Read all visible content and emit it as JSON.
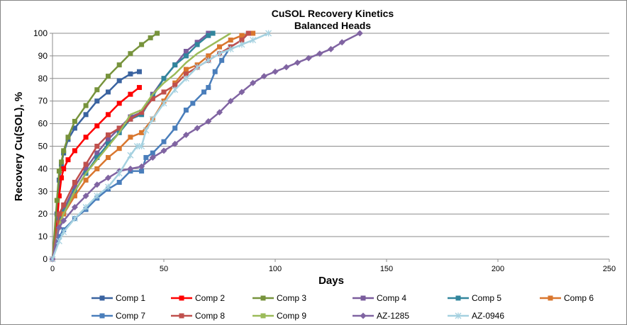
{
  "chart_data": {
    "type": "line",
    "title": "CuSOL Recovery Kinetics",
    "subtitle": "Balanced Heads",
    "xlabel": "Days",
    "ylabel": "Recovery Cu(SOL), %",
    "xlim": [
      0,
      250
    ],
    "ylim": [
      0,
      100
    ],
    "xticks": [
      0,
      50,
      100,
      150,
      200,
      250
    ],
    "yticks": [
      0,
      10,
      20,
      30,
      40,
      50,
      60,
      70,
      80,
      90,
      100
    ],
    "grid": "horizontal",
    "legend": "bottom",
    "series": [
      {
        "name": "Comp 1",
        "color": "#3A63A0",
        "marker": "square",
        "x": [
          0,
          2,
          3,
          4,
          5,
          7,
          10,
          15,
          20,
          25,
          30,
          35,
          39
        ],
        "y": [
          0,
          20,
          35,
          42,
          47,
          53,
          58,
          64,
          70,
          74,
          79,
          82,
          83
        ]
      },
      {
        "name": "Comp 2",
        "color": "#FF0000",
        "marker": "square",
        "x": [
          0,
          2,
          3,
          4,
          5,
          7,
          10,
          15,
          20,
          25,
          30,
          35,
          39
        ],
        "y": [
          0,
          15,
          28,
          36,
          40,
          44,
          48,
          54,
          59,
          64,
          69,
          73,
          76
        ]
      },
      {
        "name": "Comp 3",
        "color": "#77933C",
        "marker": "square",
        "x": [
          0,
          2,
          3,
          4,
          5,
          7,
          10,
          15,
          20,
          25,
          30,
          35,
          40,
          44,
          47
        ],
        "y": [
          0,
          26,
          39,
          43,
          48,
          54,
          61,
          68,
          75,
          81,
          86,
          91,
          95,
          98,
          100
        ]
      },
      {
        "name": "Comp 4",
        "color": "#7A5C9C",
        "marker": "square",
        "x": [
          0,
          3,
          5,
          10,
          15,
          20,
          25,
          30,
          35,
          40,
          45,
          50,
          55,
          60,
          65,
          70
        ],
        "y": [
          0,
          18,
          22,
          32,
          40,
          47,
          53,
          58,
          63,
          65,
          73,
          80,
          86,
          92,
          96,
          100
        ]
      },
      {
        "name": "Comp 5",
        "color": "#31859C",
        "marker": "square",
        "x": [
          0,
          3,
          5,
          10,
          15,
          20,
          25,
          30,
          35,
          40,
          45,
          50,
          55,
          60,
          65,
          70,
          72
        ],
        "y": [
          0,
          17,
          21,
          30,
          38,
          45,
          51,
          56,
          62,
          64,
          72,
          80,
          86,
          90,
          95,
          99,
          100
        ]
      },
      {
        "name": "Comp 6",
        "color": "#D9762E",
        "marker": "square",
        "x": [
          0,
          3,
          5,
          10,
          15,
          20,
          25,
          30,
          35,
          40,
          45,
          50,
          55,
          60,
          65,
          70,
          75,
          80,
          85,
          90
        ],
        "y": [
          0,
          16,
          20,
          28,
          35,
          40,
          45,
          49,
          54,
          56,
          62,
          70,
          78,
          84,
          86,
          90,
          94,
          97,
          99,
          100
        ]
      },
      {
        "name": "Comp 7",
        "color": "#4A7EBB",
        "marker": "square",
        "x": [
          0,
          3,
          5,
          10,
          15,
          20,
          25,
          30,
          35,
          40,
          42,
          45,
          50,
          55,
          60,
          63,
          68,
          70,
          73,
          76,
          80,
          85,
          88
        ],
        "y": [
          0,
          10,
          13,
          18,
          22,
          27,
          31,
          34,
          39,
          39,
          45,
          47,
          52,
          58,
          66,
          69,
          74,
          76,
          83,
          88,
          94,
          97,
          100
        ]
      },
      {
        "name": "Comp 8",
        "color": "#C0504D",
        "marker": "square",
        "x": [
          0,
          3,
          5,
          10,
          15,
          20,
          25,
          30,
          35,
          40,
          45,
          50,
          55,
          60,
          65,
          70,
          75,
          80,
          85,
          88
        ],
        "y": [
          0,
          20,
          24,
          34,
          42,
          50,
          55,
          58,
          62,
          65,
          71,
          74,
          77,
          82,
          85,
          88,
          91,
          94,
          97,
          100
        ]
      },
      {
        "name": "Comp 9",
        "color": "#9BBB59",
        "marker": "none",
        "x": [
          0,
          3,
          5,
          10,
          15,
          20,
          25,
          30,
          35,
          40,
          45,
          50,
          55,
          60,
          65,
          70,
          75,
          80
        ],
        "y": [
          0,
          15,
          20,
          30,
          38,
          44,
          50,
          56,
          64,
          66,
          73,
          78,
          82,
          87,
          91,
          94,
          97,
          100
        ]
      },
      {
        "name": "AZ-1285",
        "color": "#8064A2",
        "marker": "diamond",
        "x": [
          0,
          3,
          5,
          10,
          15,
          20,
          25,
          30,
          35,
          40,
          45,
          50,
          55,
          60,
          65,
          70,
          75,
          80,
          85,
          90,
          95,
          100,
          105,
          110,
          115,
          120,
          125,
          130,
          138
        ],
        "y": [
          0,
          14,
          17,
          23,
          28,
          33,
          36,
          39,
          40,
          41,
          45,
          48,
          51,
          55,
          58,
          61,
          65,
          70,
          74,
          78,
          81,
          83,
          85,
          87,
          89,
          91,
          93,
          96,
          100
        ]
      },
      {
        "name": "AZ-0946",
        "color": "#A5D1E0",
        "marker": "asterisk",
        "x": [
          0,
          3,
          5,
          10,
          15,
          20,
          25,
          30,
          35,
          38,
          40,
          42,
          45,
          50,
          55,
          60,
          65,
          70,
          75,
          80,
          85,
          90,
          97
        ],
        "y": [
          0,
          8,
          12,
          18,
          23,
          28,
          32,
          38,
          46,
          50,
          50,
          57,
          62,
          69,
          75,
          80,
          85,
          88,
          91,
          93,
          95,
          97,
          100
        ]
      }
    ]
  }
}
